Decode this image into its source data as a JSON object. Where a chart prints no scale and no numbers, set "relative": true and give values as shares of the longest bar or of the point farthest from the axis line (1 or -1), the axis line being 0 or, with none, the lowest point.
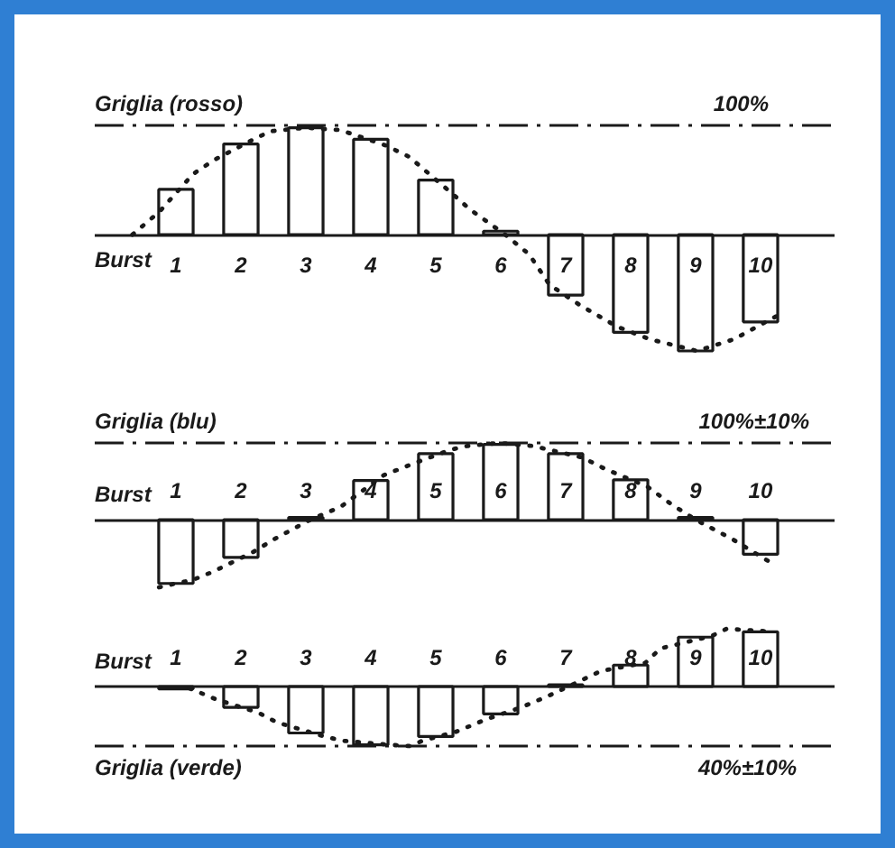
{
  "chart_data": [
    {
      "type": "bar",
      "relative": true,
      "x": [
        1,
        2,
        3,
        4,
        5,
        6,
        7,
        8,
        9,
        10
      ],
      "xlim": [
        -0.25,
        11.14
      ],
      "xticks": [
        1,
        2,
        3,
        4,
        5,
        6,
        7,
        8,
        9,
        10
      ],
      "xlabel": "Burst",
      "series": [
        {
          "color": "#1a1a1a",
          "values": [
            0.39,
            0.78,
            0.92,
            0.82,
            0.47,
            0.03,
            -0.52,
            -0.84,
            -1.0,
            -0.75
          ]
        },
        {
          "type": "line",
          "color": "#1a1a1a",
          "line_style": "dotted",
          "x": [
            0.33,
            0.75,
            1.26,
            1.58,
            2.23,
            2.46,
            3.0,
            3.53,
            4.22,
            4.59,
            5.26,
            5.52,
            6.07,
            6.44,
            6.75,
            7.23,
            7.79,
            8.3,
            9.02,
            9.59,
            10.38
          ],
          "values": [
            0,
            0.2,
            0.52,
            0.64,
            0.83,
            0.89,
            0.92,
            0.9,
            0.77,
            0.67,
            0.35,
            0.22,
            0,
            -0.17,
            -0.43,
            -0.61,
            -0.79,
            -0.9,
            -1.0,
            -0.9,
            -0.66
          ]
        }
      ],
      "ref_lines": [
        {
          "axis": "y",
          "value": 0.94,
          "label": "Griglia (rosso)",
          "line_style": "dashdot",
          "color": "#1a1a1a"
        }
      ],
      "annotations": [
        {
          "text": "100%",
          "x": 9.7,
          "y": 0.94
        }
      ]
    },
    {
      "type": "bar",
      "relative": true,
      "x": [
        1,
        2,
        3,
        4,
        5,
        6,
        7,
        8,
        9,
        10
      ],
      "xlim": [
        -0.25,
        11.14
      ],
      "xticks": [
        1,
        2,
        3,
        4,
        5,
        6,
        7,
        8,
        9,
        10
      ],
      "xlabel": "Burst",
      "series": [
        {
          "color": "#1a1a1a",
          "values": [
            -0.83,
            -0.49,
            0.03,
            0.51,
            0.86,
            0.98,
            0.86,
            0.52,
            0.03,
            -0.45
          ]
        },
        {
          "type": "line",
          "color": "#1a1a1a",
          "line_style": "dotted",
          "x": [
            0.74,
            1.27,
            1.59,
            2.19,
            2.52,
            3.07,
            3.54,
            4.2,
            4.56,
            5.22,
            5.48,
            5.97,
            6.5,
            7.26,
            7.61,
            8.26,
            8.63,
            9.0,
            9.56,
            10.22
          ],
          "values": [
            -0.88,
            -0.78,
            -0.67,
            -0.42,
            -0.25,
            0,
            0.17,
            0.58,
            0.7,
            0.91,
            0.96,
            1.0,
            0.96,
            0.81,
            0.66,
            0.43,
            0.2,
            0,
            -0.25,
            -0.59
          ]
        }
      ],
      "ref_lines": [
        {
          "axis": "y",
          "value": 1.0,
          "label": "Griglia (blu)",
          "line_style": "dashdot",
          "color": "#1a1a1a"
        }
      ],
      "annotations": [
        {
          "text": "100%±10%",
          "x": 9.9,
          "y": 1.0
        }
      ]
    },
    {
      "type": "bar",
      "relative": true,
      "x": [
        1,
        2,
        3,
        4,
        5,
        6,
        7,
        8,
        9,
        10
      ],
      "xlim": [
        -0.25,
        11.14
      ],
      "xticks": [
        1,
        2,
        3,
        4,
        5,
        6,
        7,
        8,
        9,
        10
      ],
      "xlabel": "Burst",
      "series": [
        {
          "color": "#1a1a1a",
          "values": [
            -0.04,
            -0.35,
            -0.78,
            -0.98,
            -0.84,
            -0.46,
            0.03,
            0.36,
            0.83,
            0.92
          ]
        },
        {
          "type": "line",
          "color": "#1a1a1a",
          "line_style": "dotted",
          "x": [
            1.21,
            1.63,
            2.27,
            2.55,
            3.29,
            3.56,
            4.3,
            4.6,
            4.8,
            5.31,
            5.78,
            6.29,
            6.71,
            7.12,
            7.54,
            8.23,
            8.46,
            9.25,
            9.48,
            9.76,
            10.2
          ],
          "values": [
            -0.03,
            -0.22,
            -0.44,
            -0.6,
            -0.84,
            -0.91,
            -0.98,
            -1.0,
            -0.91,
            -0.76,
            -0.55,
            -0.36,
            -0.17,
            0.04,
            0.26,
            0.4,
            0.64,
            0.85,
            0.97,
            0.95,
            0.92
          ]
        }
      ],
      "ref_lines": [
        {
          "axis": "y",
          "value": -1.0,
          "label": "Griglia (verde)",
          "line_style": "dashdot",
          "color": "#1a1a1a"
        }
      ],
      "annotations": [
        {
          "text": "40%±10%",
          "x": 9.8,
          "y": -1.0
        }
      ]
    }
  ]
}
